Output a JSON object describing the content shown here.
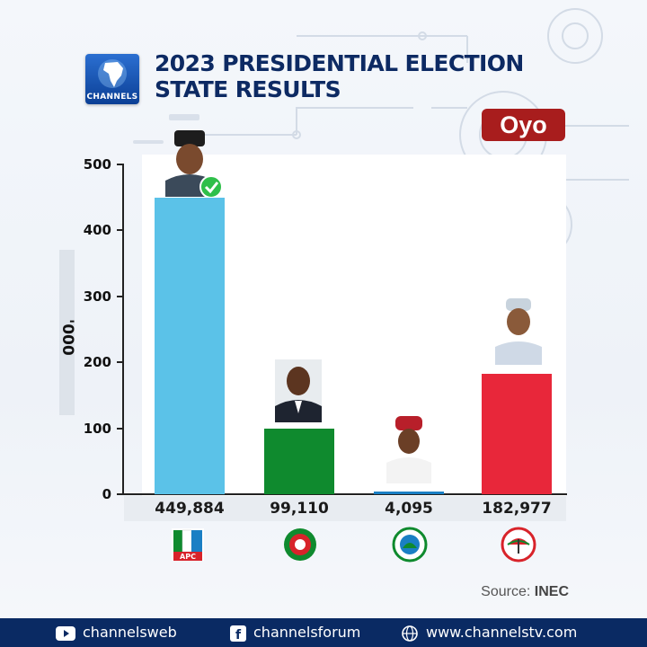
{
  "header": {
    "logo_text": "CHANNELS",
    "title_line1": "2023 PRESIDENTIAL ELECTION",
    "title_line2": "STATE RESULTS",
    "state": "Oyo"
  },
  "chart_data": {
    "type": "bar",
    "title": "2023 PRESIDENTIAL ELECTION STATE RESULTS",
    "ylabel": "'000",
    "ylim": [
      0,
      500
    ],
    "yticks": [
      "500",
      "400",
      "300",
      "200",
      "100",
      "0"
    ],
    "categories": [
      "APC",
      "LP",
      "NNPP",
      "PDP"
    ],
    "values": [
      449884,
      99110,
      4095,
      182977
    ],
    "value_labels": [
      "449,884",
      "99,110",
      "4,095",
      "182,977"
    ],
    "colors": [
      "#5bc2e8",
      "#0f8a2e",
      "#1a7fc4",
      "#e8273a"
    ],
    "winner_icon": "green-checkmark-icon",
    "grid": false,
    "legend": "none"
  },
  "party_logos": [
    {
      "name": "apc-logo-icon",
      "text": "APC"
    },
    {
      "name": "lp-logo-icon",
      "text": ""
    },
    {
      "name": "nnpp-logo-icon",
      "text": ""
    },
    {
      "name": "pdp-logo-icon",
      "text": ""
    }
  ],
  "source": {
    "label": "Source:",
    "value": "INEC"
  },
  "footer": {
    "youtube": "channelsweb",
    "facebook": "channelsforum",
    "website": "www.channelstv.com"
  }
}
